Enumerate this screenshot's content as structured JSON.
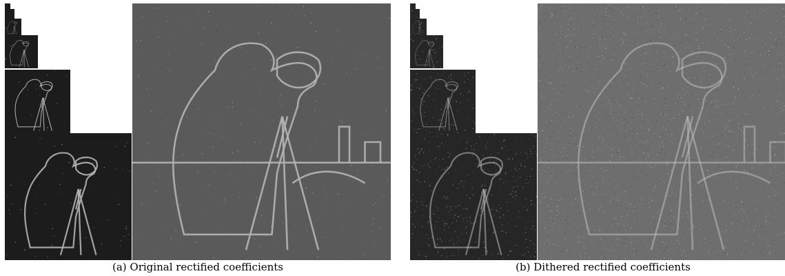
{
  "panels": [
    {
      "id": "a",
      "label": "(a)",
      "caption": "Original rectified coefficients",
      "big_tone": "#5a5a5a",
      "small_tone": "#1c1c1c",
      "edge_color": "#b4b4b4",
      "noise_level": 0.12
    },
    {
      "id": "b",
      "label": "(b)",
      "caption": "Dithered rectified coefficients",
      "big_tone": "#6e6e6e",
      "small_tone": "#262626",
      "edge_color": "#bcbcbc",
      "noise_level": 0.85
    }
  ]
}
